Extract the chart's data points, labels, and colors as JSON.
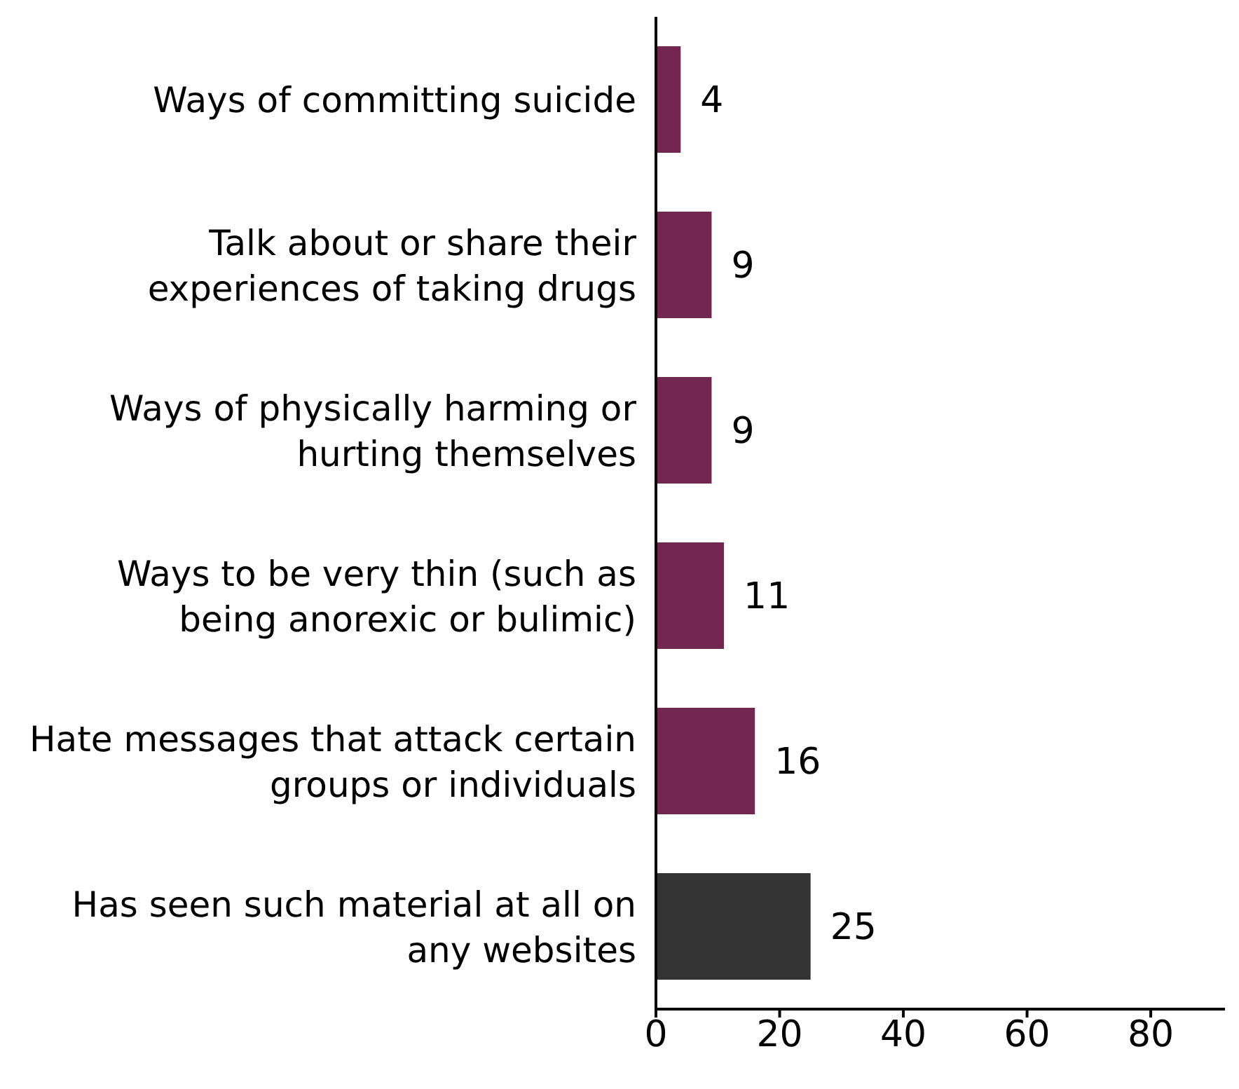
{
  "chart_data": {
    "type": "bar",
    "orientation": "horizontal",
    "categories": [
      "Ways of committing suicide",
      "Talk about or share their experiences of taking drugs",
      "Ways of physically harming or hurting themselves",
      "Ways to be very thin (such as being anorexic or bulimic)",
      "Hate messages that attack certain groups or individuals",
      "Has seen such material at all on any websites"
    ],
    "values": [
      4,
      9,
      9,
      11,
      16,
      25
    ],
    "colors": [
      "#722650",
      "#722650",
      "#722650",
      "#722650",
      "#722650",
      "#333333"
    ],
    "xlim": [
      0,
      92
    ],
    "xticks": [
      0,
      20,
      40,
      60,
      80
    ],
    "data_labels": true,
    "grid": false,
    "legend": false
  }
}
